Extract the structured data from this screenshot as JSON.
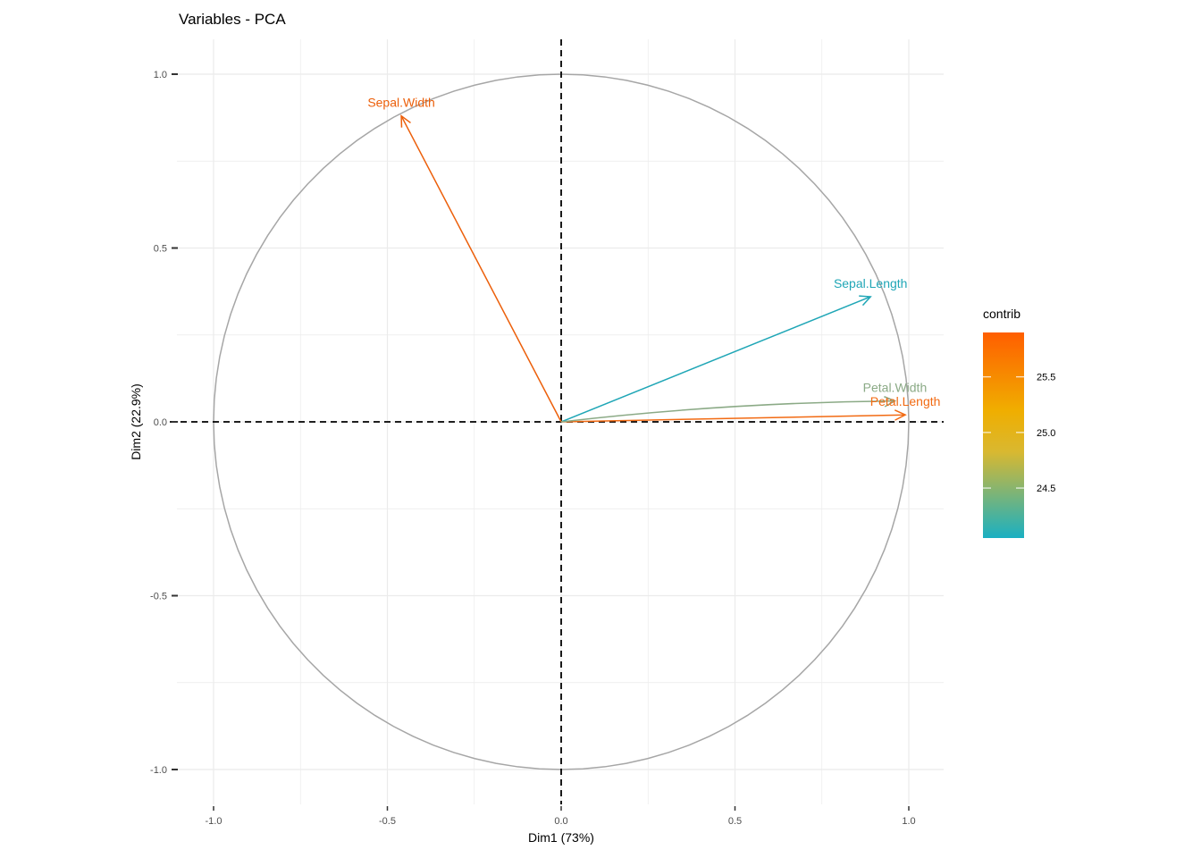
{
  "chart_data": {
    "type": "scatter",
    "subtype": "pca-variable-correlation-circle",
    "title": "Variables - PCA",
    "xlabel": "Dim1 (73%)",
    "ylabel": "Dim2 (22.9%)",
    "xlim": [
      -1.1,
      1.1
    ],
    "ylim": [
      -1.1,
      1.1
    ],
    "x_ticks": [
      -1.0,
      -0.5,
      0.0,
      0.5,
      1.0
    ],
    "x_tick_labels": [
      "-1.0",
      "-0.5",
      "0.0",
      "0.5",
      "1.0"
    ],
    "y_ticks": [
      -1.0,
      -0.5,
      0.0,
      0.5,
      1.0
    ],
    "y_tick_labels": [
      "-1.0",
      "-0.5",
      "0.0",
      "0.5",
      "1.0"
    ],
    "grid": true,
    "unit_circle": true,
    "reference_lines": [
      0,
      0
    ],
    "variables": [
      {
        "name": "Sepal.Length",
        "x": 0.89,
        "y": 0.36,
        "contrib": 24.1,
        "color": "#1FA6B6"
      },
      {
        "name": "Sepal.Width",
        "x": -0.46,
        "y": 0.88,
        "contrib": 25.9,
        "color": "#EC5F0A"
      },
      {
        "name": "Petal.Length",
        "x": 0.99,
        "y": 0.02,
        "contrib": 25.7,
        "color": "#F26A12"
      },
      {
        "name": "Petal.Width",
        "x": 0.96,
        "y": 0.06,
        "contrib": 24.3,
        "color": "#8BAA86"
      }
    ],
    "legend": {
      "title": "contrib",
      "placement": "right",
      "range": [
        24.05,
        25.9
      ],
      "ticks": [
        24.5,
        25.0,
        25.5
      ],
      "tick_labels": [
        "24.5",
        "25.0",
        "25.5"
      ],
      "gradient_colors": [
        "#1AB0C2",
        "#D9B830",
        "#F0AE00",
        "#FF5E00"
      ]
    }
  },
  "colors": {
    "grid": "#ebebeb",
    "circle": "#a6a6a6",
    "reference_line": "#000000"
  }
}
